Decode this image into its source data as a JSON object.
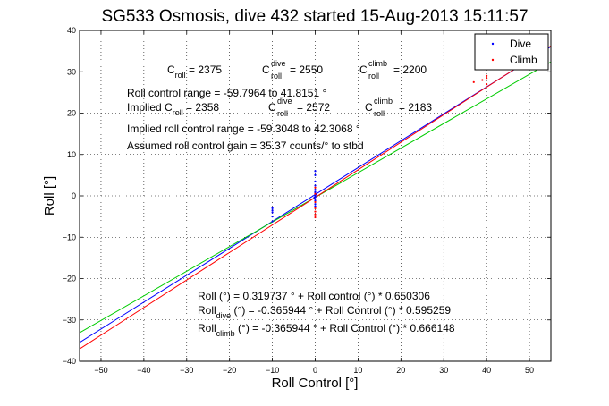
{
  "chart_data": {
    "type": "scatter",
    "title": "SG533 Osmosis, dive 432 started 15-Aug-2013 15:11:57",
    "xlabel": "Roll Control [°]",
    "ylabel": "Roll [°]",
    "xlim": [
      -55,
      55
    ],
    "ylim": [
      -40,
      40
    ],
    "xticks": [
      -50,
      -40,
      -30,
      -20,
      -10,
      0,
      10,
      20,
      30,
      40,
      50
    ],
    "yticks": [
      -40,
      -30,
      -20,
      -10,
      0,
      10,
      20,
      30,
      40
    ],
    "grid": true,
    "legend": {
      "position": "top-right",
      "entries": [
        {
          "label": "Dive",
          "color": "#0000ff"
        },
        {
          "label": "Climb",
          "color": "#ff0000"
        }
      ]
    },
    "fit_lines": [
      {
        "intercept": 0.319737,
        "slope": 0.650306,
        "color": "#0000ff"
      },
      {
        "intercept": -0.365944,
        "slope": 0.595259,
        "color": "#00cc00"
      },
      {
        "intercept": -0.365944,
        "slope": 0.666148,
        "color": "#ff0000"
      }
    ],
    "series": [
      {
        "name": "Dive",
        "color": "#0000ff",
        "points": [
          [
            -10,
            -3
          ],
          [
            -10,
            -3.5
          ],
          [
            -10,
            -4
          ],
          [
            -10,
            -2.8
          ],
          [
            -10,
            -5
          ],
          [
            -10,
            -6.2
          ],
          [
            0,
            0
          ],
          [
            0,
            -0.3
          ],
          [
            0,
            0.3
          ],
          [
            0,
            0.8
          ],
          [
            0,
            -0.8
          ],
          [
            0,
            1.5
          ],
          [
            0,
            2.5
          ],
          [
            0,
            3.5
          ],
          [
            0,
            5
          ],
          [
            0,
            6
          ],
          [
            0,
            1
          ],
          [
            0,
            -1.2
          ],
          [
            0,
            -2
          ],
          [
            0,
            -2.5
          ],
          [
            0.2,
            0.4
          ],
          [
            -0.2,
            -0.4
          ]
        ]
      },
      {
        "name": "Climb",
        "color": "#ff0000",
        "points": [
          [
            0,
            -3
          ],
          [
            0,
            -3.8
          ],
          [
            0,
            -4.5
          ],
          [
            0,
            -5.2
          ],
          [
            0,
            -1.5
          ],
          [
            0,
            0.5
          ],
          [
            0,
            2
          ],
          [
            37,
            27.5
          ],
          [
            39,
            28
          ],
          [
            40,
            28.5
          ],
          [
            40,
            27
          ],
          [
            40,
            29
          ]
        ]
      }
    ],
    "annotations": {
      "c_roll": {
        "base": "C",
        "sub": "roll",
        "eq": " = 2375"
      },
      "c_roll_dive": {
        "base": "C",
        "sup": "dive",
        "sub": "roll",
        "eq": " = 2550"
      },
      "c_roll_climb": {
        "base": "C",
        "sup": "climb",
        "sub": "roll",
        "eq": " = 2200"
      },
      "range_line": "Roll control range = -59.7964 to 41.8151 °",
      "implied_prefix": "Implied ",
      "implied_c_roll": {
        "base": "C",
        "sub": "roll",
        "eq": " = 2358"
      },
      "implied_c_roll_dive": {
        "base": "C",
        "sup": "dive",
        "sub": "roll",
        "eq": " = 2572"
      },
      "implied_c_roll_climb": {
        "base": "C",
        "sup": "climb",
        "sub": "roll",
        "eq": " = 2183"
      },
      "implied_range": "Implied roll control range = -59.3048 to 42.3068 °",
      "gain": "Assumed roll control gain = 35.37 counts/° to stbd",
      "eq_roll": "Roll (°) = 0.319737 ° + Roll control (°) * 0.650306",
      "eq_dive": {
        "base": "Roll",
        "sub": "dive",
        "rest": " (°) = -0.365944 ° + Roll Control (°) * 0.595259"
      },
      "eq_climb": {
        "base": "Roll",
        "sub": "climb",
        "rest": " (°) = -0.365944 ° + Roll Control (°) * 0.666148"
      }
    }
  }
}
